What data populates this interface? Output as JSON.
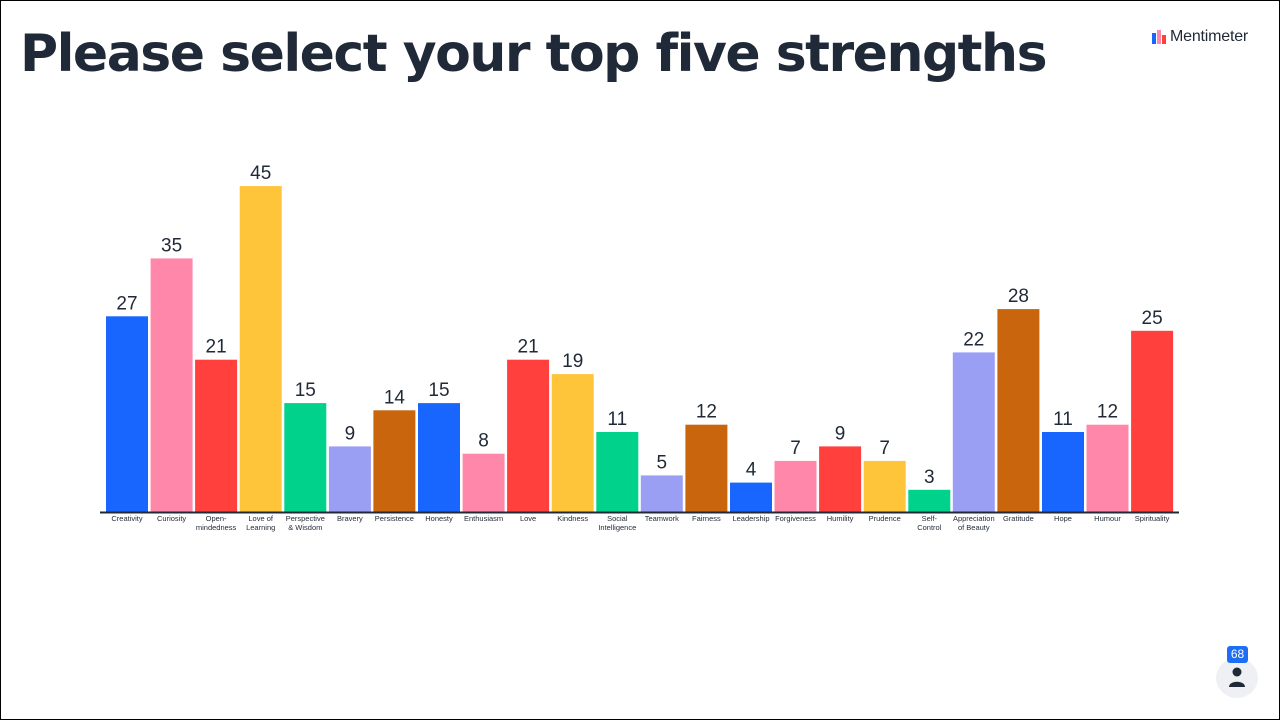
{
  "title": "Please select your top five strengths",
  "brand": {
    "name": "Mentimeter",
    "icon": "mentimeter-logo"
  },
  "participants": {
    "count": "68",
    "icon": "person-icon"
  },
  "chart_data": {
    "type": "bar",
    "title": "",
    "xlabel": "",
    "ylabel": "",
    "ylim": [
      0,
      45
    ],
    "grid": false,
    "categories": [
      [
        "Creativity"
      ],
      [
        "Curiosity"
      ],
      [
        "Open-",
        "mindedness"
      ],
      [
        "Love of",
        "Learning"
      ],
      [
        "Perspective",
        "& Wisdom"
      ],
      [
        "Bravery"
      ],
      [
        "Persistence"
      ],
      [
        "Honesty"
      ],
      [
        "Enthusiasm"
      ],
      [
        "Love"
      ],
      [
        "Kindness"
      ],
      [
        "Social",
        "Intelligence"
      ],
      [
        "Teamwork"
      ],
      [
        "Fairness"
      ],
      [
        "Leadership"
      ],
      [
        "Forgiveness"
      ],
      [
        "Humility"
      ],
      [
        "Prudence"
      ],
      [
        "Self-",
        "Control"
      ],
      [
        "Appreciation",
        "of Beauty"
      ],
      [
        "Gratitude"
      ],
      [
        "Hope"
      ],
      [
        "Humour"
      ],
      [
        "Spirituality"
      ]
    ],
    "values": [
      27,
      35,
      21,
      45,
      15,
      9,
      14,
      15,
      8,
      21,
      19,
      11,
      5,
      12,
      4,
      7,
      9,
      7,
      3,
      22,
      28,
      11,
      12,
      25
    ],
    "colors": [
      "#1966ff",
      "#ff88aa",
      "#ff403d",
      "#ffc53a",
      "#00d28c",
      "#9b9ff3",
      "#c9650c",
      "#1966ff",
      "#ff88aa",
      "#ff403d",
      "#ffc53a",
      "#00d28c",
      "#9b9ff3",
      "#c9650c",
      "#1966ff",
      "#ff88aa",
      "#ff403d",
      "#ffc53a",
      "#00d28c",
      "#9b9ff3",
      "#c9650c",
      "#1966ff",
      "#ff88aa",
      "#ff403d"
    ],
    "axis_color": "#1f2937"
  }
}
